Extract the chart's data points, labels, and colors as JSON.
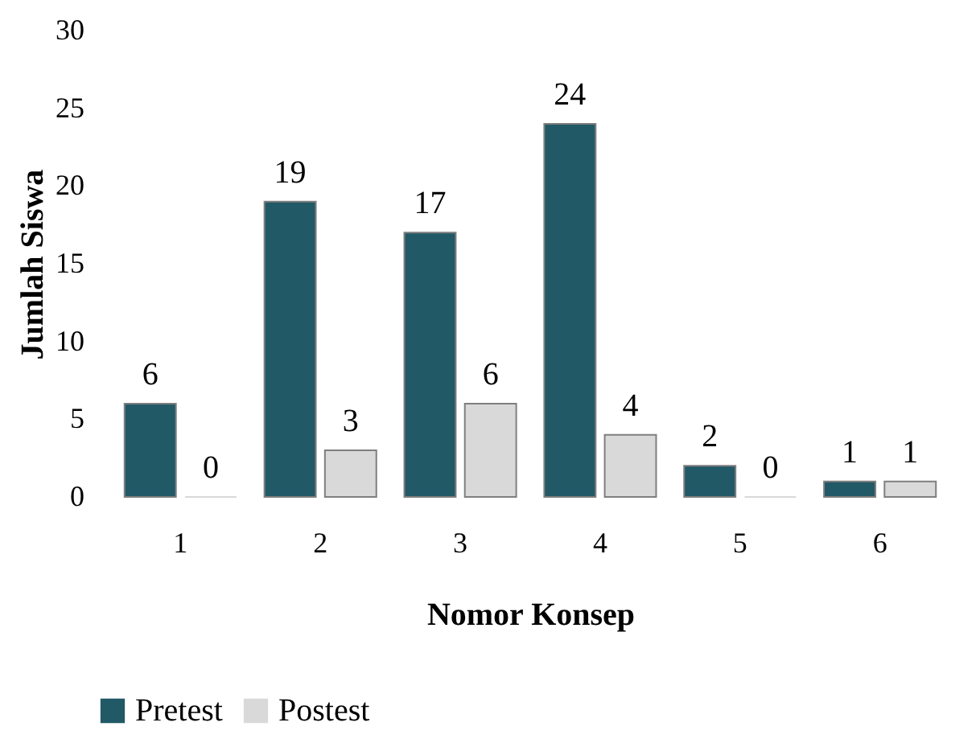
{
  "chart_data": {
    "type": "bar",
    "xlabel": "Nomor Konsep",
    "ylabel": "Jumlah Siswa",
    "categories": [
      "1",
      "2",
      "3",
      "4",
      "5",
      "6"
    ],
    "series": [
      {
        "name": "Pretest",
        "color": "#215967",
        "values": [
          6,
          19,
          17,
          24,
          2,
          1
        ]
      },
      {
        "name": "Postest",
        "color": "#d9d9d9",
        "values": [
          0,
          3,
          6,
          4,
          0,
          1
        ]
      }
    ],
    "ylim": [
      0,
      30
    ],
    "yticks": [
      0,
      5,
      10,
      15,
      20,
      25,
      30
    ],
    "grid": false,
    "legend": "bottom",
    "data_labels": true
  }
}
